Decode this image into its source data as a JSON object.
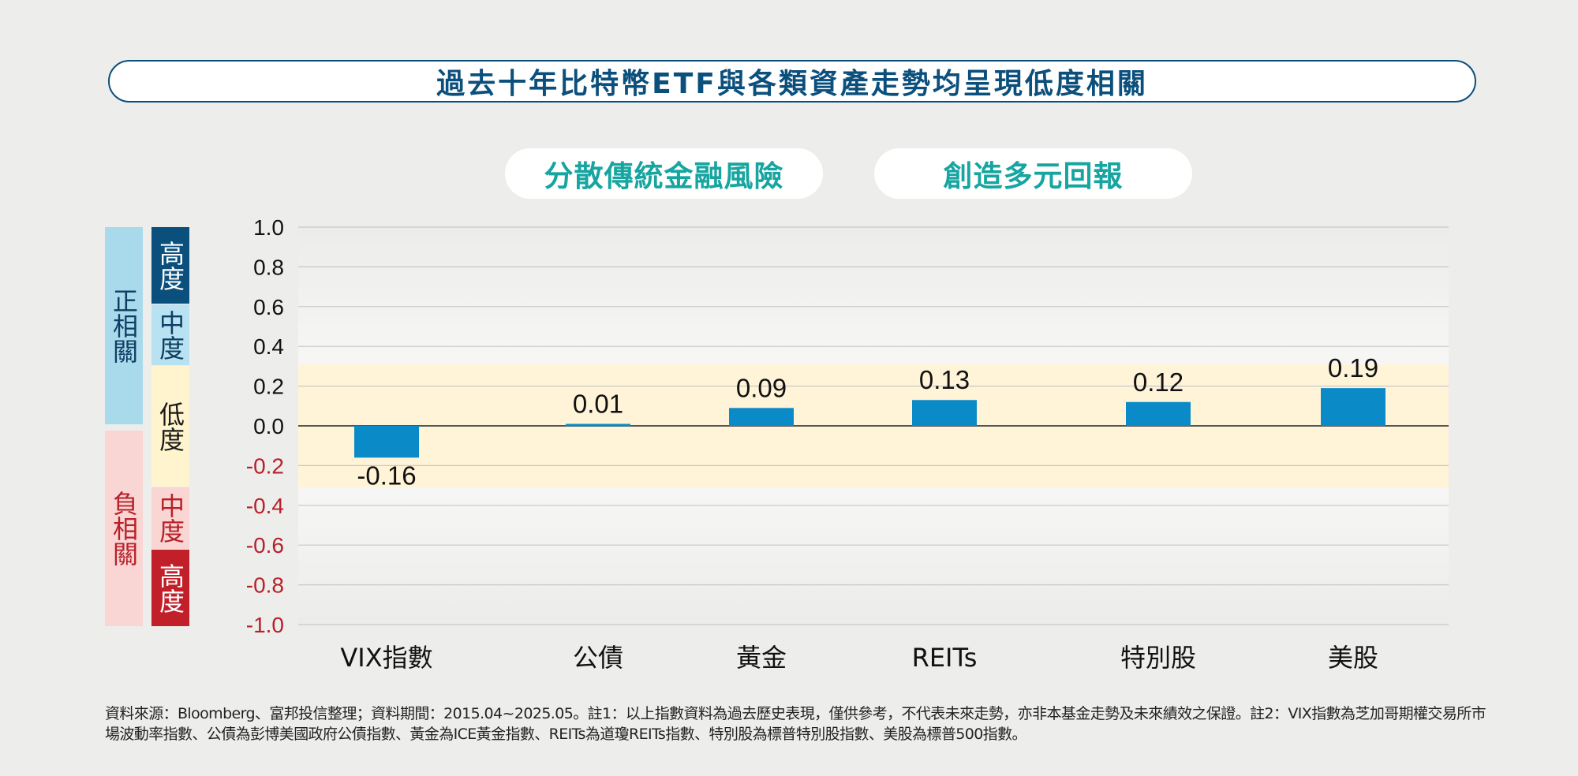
{
  "header": {
    "title": "過去十年比特幣ETF與各類資產走勢均呈現低度相關",
    "tag_left": "分散傳統金融風險",
    "tag_right": "創造多元回報"
  },
  "legend": {
    "positive": "正相關",
    "negative": "負相關",
    "high_pos": "高度",
    "mid_pos": "中度",
    "low": "低度",
    "mid_neg": "中度",
    "high_neg": "高度"
  },
  "colors": {
    "title": "#0b4f7c",
    "tag_text": "#16a5a0",
    "bar": "#0a8bc8",
    "positive_tick": "#111111",
    "negative_tick": "#b82029",
    "low_band": "#fff4d8"
  },
  "chart_data": {
    "type": "bar",
    "categories": [
      "VIX指數",
      "公債",
      "黃金",
      "REITs",
      "特別股",
      "美股"
    ],
    "values": [
      -0.16,
      0.01,
      0.09,
      0.13,
      0.12,
      0.19
    ],
    "data_labels": [
      "-0.16",
      "0.01",
      "0.09",
      "0.13",
      "0.12",
      "0.19"
    ],
    "yticks": [
      "1.0",
      "0.8",
      "0.6",
      "0.4",
      "0.2",
      "0.0",
      "-0.2",
      "-0.4",
      "-0.6",
      "-0.8",
      "-1.0"
    ],
    "ylim": [
      -1.0,
      1.0
    ],
    "low_correlation_band": [
      -0.31,
      0.31
    ],
    "grid": true
  },
  "footnote": "資料來源：Bloomberg、富邦投信整理；資料期間：2015.04~2025.05。註1：以上指數資料為過去歷史表現，僅供參考，不代表未來走勢，亦非本基金走勢及未來績效之保證。註2：VIX指數為芝加哥期權交易所市場波動率指數、公債為彭博美國政府公債指數、黃金為ICE黃金指數、REITs為道瓊REITs指數、特別股為標普特別股指數、美股為標普500指數。"
}
